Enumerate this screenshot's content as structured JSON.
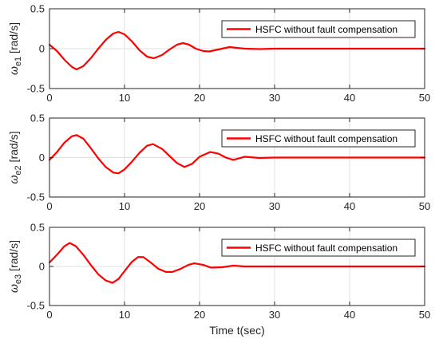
{
  "chart_data": [
    {
      "type": "line",
      "ylabel_symbol": "ω",
      "ylabel_sub": "e1",
      "ylabel_unit": "[rad/s]",
      "xlim": [
        0,
        50
      ],
      "ylim": [
        -0.5,
        0.5
      ],
      "xticks": [
        "0",
        "10",
        "20",
        "30",
        "40",
        "50"
      ],
      "yticks": [
        "0.5",
        "0",
        "-0.5"
      ],
      "grid": true,
      "legend_position": "top-right",
      "series": [
        {
          "name": "HSFC without fault compensation",
          "color": "#ff0000",
          "x": [
            0,
            1,
            2,
            3,
            3.6,
            4.5,
            5.5,
            6.5,
            7.5,
            8.5,
            9.2,
            10,
            11,
            12,
            13,
            13.9,
            15,
            16,
            17,
            17.8,
            18.6,
            19.5,
            20.5,
            21.3,
            22.5,
            24,
            26,
            28,
            30,
            35,
            40,
            45,
            50
          ],
          "y": [
            0.05,
            -0.03,
            -0.14,
            -0.23,
            -0.26,
            -0.22,
            -0.12,
            0.0,
            0.11,
            0.19,
            0.21,
            0.18,
            0.09,
            -0.02,
            -0.1,
            -0.12,
            -0.08,
            -0.01,
            0.05,
            0.07,
            0.05,
            0.0,
            -0.03,
            -0.035,
            -0.01,
            0.02,
            0.0,
            -0.005,
            0.0,
            0.0,
            0.0,
            0.0,
            0.0
          ]
        }
      ]
    },
    {
      "type": "line",
      "ylabel_symbol": "ω",
      "ylabel_sub": "e2",
      "ylabel_unit": "[rad/s]",
      "xlim": [
        0,
        50
      ],
      "ylim": [
        -0.5,
        0.5
      ],
      "xticks": [
        "0",
        "10",
        "20",
        "30",
        "40",
        "50"
      ],
      "yticks": [
        "0.5",
        "0",
        "-0.5"
      ],
      "grid": true,
      "legend_position": "top-right",
      "series": [
        {
          "name": "HSFC without fault compensation",
          "color": "#ff0000",
          "x": [
            0,
            1,
            2,
            3,
            3.6,
            4.5,
            5.5,
            6.5,
            7.5,
            8.5,
            9.2,
            10,
            11,
            12,
            13,
            13.8,
            15,
            16,
            17,
            18,
            19,
            20,
            21.4,
            22.5,
            23.5,
            24.5,
            26,
            28,
            30,
            35,
            40,
            45,
            50
          ],
          "y": [
            -0.03,
            0.07,
            0.19,
            0.27,
            0.285,
            0.24,
            0.12,
            -0.01,
            -0.12,
            -0.19,
            -0.2,
            -0.15,
            -0.05,
            0.06,
            0.15,
            0.17,
            0.11,
            0.02,
            -0.07,
            -0.12,
            -0.08,
            0.01,
            0.07,
            0.05,
            0.0,
            -0.03,
            0.01,
            -0.005,
            0.0,
            0.0,
            0.0,
            0.0,
            0.0
          ]
        }
      ]
    },
    {
      "type": "line",
      "ylabel_symbol": "ω",
      "ylabel_sub": "e3",
      "ylabel_unit": "[rad/s]",
      "xlim": [
        0,
        50
      ],
      "ylim": [
        -0.5,
        0.5
      ],
      "xticks": [
        "0",
        "10",
        "20",
        "30",
        "40",
        "50"
      ],
      "yticks": [
        "0.5",
        "0",
        "-0.5"
      ],
      "grid": true,
      "legend_position": "top-right",
      "xlabel": "Time t(sec)",
      "series": [
        {
          "name": "HSFC without fault compensation",
          "color": "#ff0000",
          "x": [
            0,
            1,
            2,
            2.7,
            3.5,
            4.5,
            5.5,
            6.5,
            7.5,
            8.4,
            9.2,
            10,
            11,
            11.8,
            12.5,
            13.5,
            14.5,
            15.5,
            16.4,
            17.5,
            18.5,
            19.3,
            20.5,
            21.5,
            23,
            24.5,
            26,
            28,
            30,
            35,
            40,
            45,
            50
          ],
          "y": [
            0.05,
            0.15,
            0.26,
            0.3,
            0.26,
            0.15,
            0.02,
            -0.1,
            -0.18,
            -0.21,
            -0.16,
            -0.06,
            0.06,
            0.12,
            0.12,
            0.05,
            -0.03,
            -0.07,
            -0.07,
            -0.03,
            0.02,
            0.04,
            0.02,
            -0.015,
            -0.01,
            0.01,
            0.0,
            0.0,
            0.0,
            0.0,
            0.0,
            0.0,
            0.0
          ]
        }
      ]
    }
  ]
}
